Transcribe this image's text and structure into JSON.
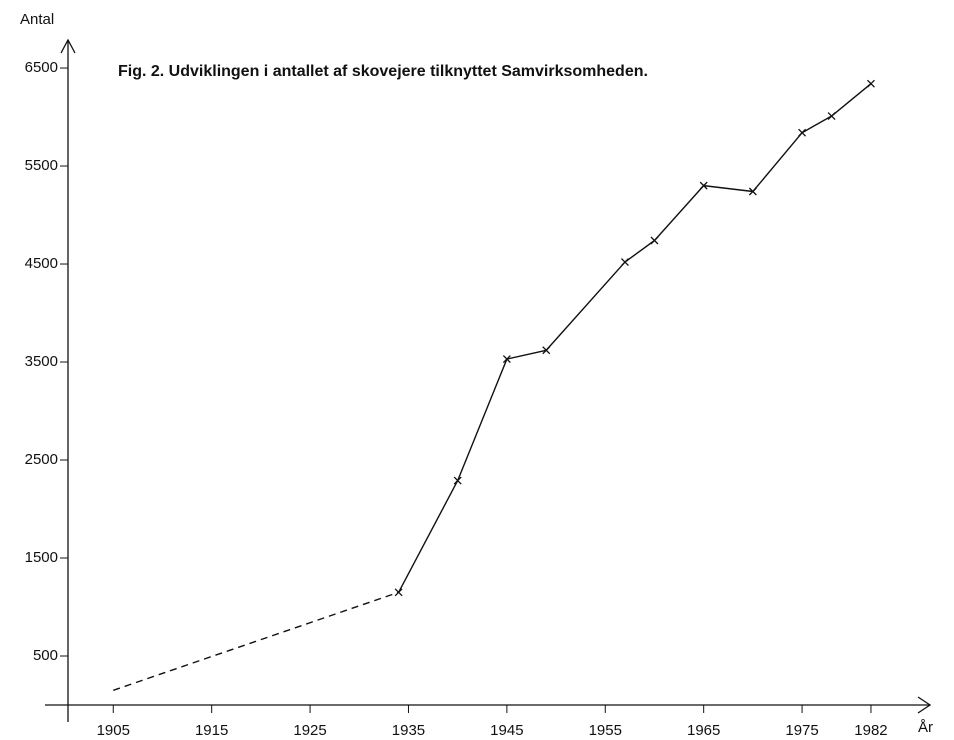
{
  "chart_data": {
    "type": "line",
    "title": "Fig. 2. Udviklingen i antallet af skovejere tilknyttet Samvirksomheden.",
    "y_label": "Antal",
    "x_label": "År",
    "x": [
      1905,
      1934,
      1940,
      1945,
      1949,
      1957,
      1960,
      1965,
      1970,
      1975,
      1978,
      1982
    ],
    "values": [
      150,
      1150,
      2290,
      3530,
      3620,
      4520,
      4740,
      5300,
      5240,
      5840,
      6010,
      6340
    ],
    "color": "#111111",
    "dashed_segments": [
      0
    ],
    "unmarked_points": [
      0
    ],
    "xlim": [
      1900.4,
      1988
    ],
    "xticks": [
      1905,
      1915,
      1925,
      1935,
      1945,
      1955,
      1965,
      1975,
      1982
    ],
    "ylim": [
      0,
      6786
    ],
    "yticks": [
      500,
      1500,
      2500,
      3500,
      4500,
      5500,
      6500
    ],
    "grid": false
  }
}
